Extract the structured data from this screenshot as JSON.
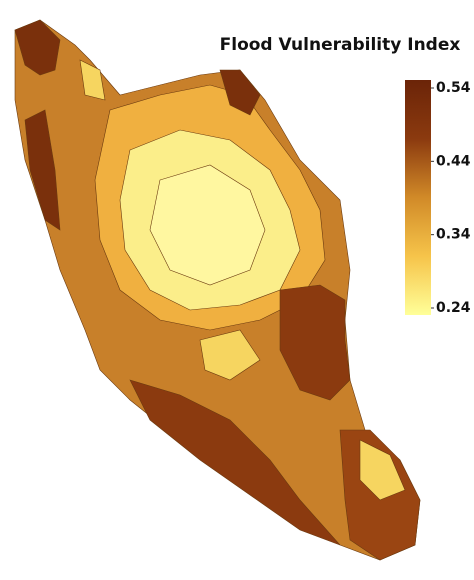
{
  "map": {
    "title": "Flood Vulnerability Index",
    "colorbar": {
      "lim": [
        0.24,
        0.54
      ],
      "ticks": [
        0.54,
        0.44,
        0.34,
        0.24
      ],
      "colors": [
        "#ffff99",
        "#f6c44a",
        "#d18a28",
        "#8b3a0f",
        "#6b2408"
      ]
    }
  }
}
